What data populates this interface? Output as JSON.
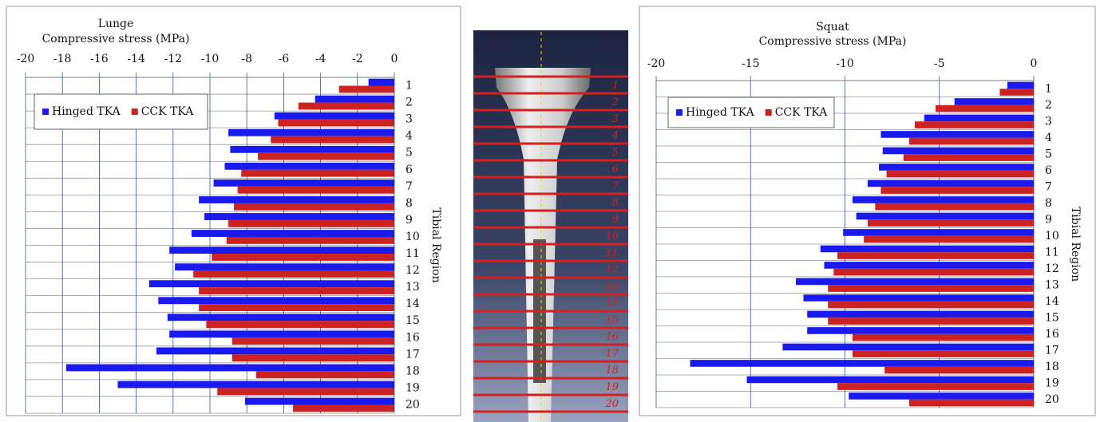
{
  "chart_data": [
    {
      "type": "bar",
      "title": "Lunge",
      "x_label": "Compressive stress (MPa)",
      "y_label": "Tibial Region",
      "categories": [
        "1",
        "2",
        "3",
        "4",
        "5",
        "6",
        "7",
        "8",
        "9",
        "10",
        "11",
        "12",
        "13",
        "14",
        "15",
        "16",
        "17",
        "18",
        "19",
        "20"
      ],
      "series": [
        {
          "name": "Hinged TKA",
          "color": "#1a1aee",
          "values": [
            -1.4,
            -4.3,
            -6.5,
            -9.0,
            -8.9,
            -9.2,
            -9.8,
            -10.6,
            -10.3,
            -11.0,
            -12.2,
            -11.9,
            -13.3,
            -12.8,
            -12.3,
            -12.2,
            -12.9,
            -17.8,
            -15.0,
            -8.1
          ]
        },
        {
          "name": "CCK TKA",
          "color": "#cc2222",
          "values": [
            -3.0,
            -5.2,
            -6.3,
            -6.7,
            -7.4,
            -8.3,
            -8.5,
            -8.7,
            -9.0,
            -9.1,
            -9.9,
            -10.9,
            -10.6,
            -10.6,
            -10.2,
            -8.8,
            -8.8,
            -7.5,
            -9.6,
            -5.5
          ]
        }
      ],
      "xlim": [
        -20,
        0
      ],
      "xticks": [
        -20,
        -18,
        -16,
        -14,
        -12,
        -10,
        -8,
        -6,
        -4,
        -2,
        0
      ],
      "grid": true,
      "legend": "top-left"
    },
    {
      "type": "bar",
      "title": "Squat",
      "x_label": "Compressive stress (MPa)",
      "y_label": "Tibial Region",
      "categories": [
        "1",
        "2",
        "3",
        "4",
        "5",
        "6",
        "7",
        "8",
        "9",
        "10",
        "11",
        "12",
        "13",
        "14",
        "15",
        "16",
        "17",
        "18",
        "19",
        "20"
      ],
      "series": [
        {
          "name": "Hinged TKA",
          "color": "#1a1aee",
          "values": [
            -1.4,
            -4.2,
            -5.8,
            -8.1,
            -8.0,
            -8.2,
            -8.8,
            -9.6,
            -9.4,
            -10.1,
            -11.3,
            -11.1,
            -12.6,
            -12.2,
            -12.0,
            -12.0,
            -13.3,
            -18.2,
            -15.2,
            -9.8
          ]
        },
        {
          "name": "CCK TKA",
          "color": "#cc2222",
          "values": [
            -1.8,
            -5.2,
            -6.3,
            -6.6,
            -6.9,
            -7.8,
            -8.1,
            -8.4,
            -8.8,
            -9.0,
            -10.4,
            -10.6,
            -10.9,
            -10.9,
            -10.9,
            -9.6,
            -9.6,
            -7.9,
            -10.4,
            -6.6
          ]
        }
      ],
      "xlim": [
        -20,
        0
      ],
      "xticks": [
        -20,
        -15,
        -10,
        -5,
        0
      ],
      "grid": true,
      "legend": "top-left"
    }
  ],
  "implant_image": {
    "region_labels": [
      "1",
      "2",
      "3",
      "4",
      "5",
      "6",
      "7",
      "8",
      "9",
      "10",
      "11",
      "12",
      "13",
      "14",
      "15",
      "16",
      "17",
      "18",
      "19",
      "20"
    ]
  }
}
